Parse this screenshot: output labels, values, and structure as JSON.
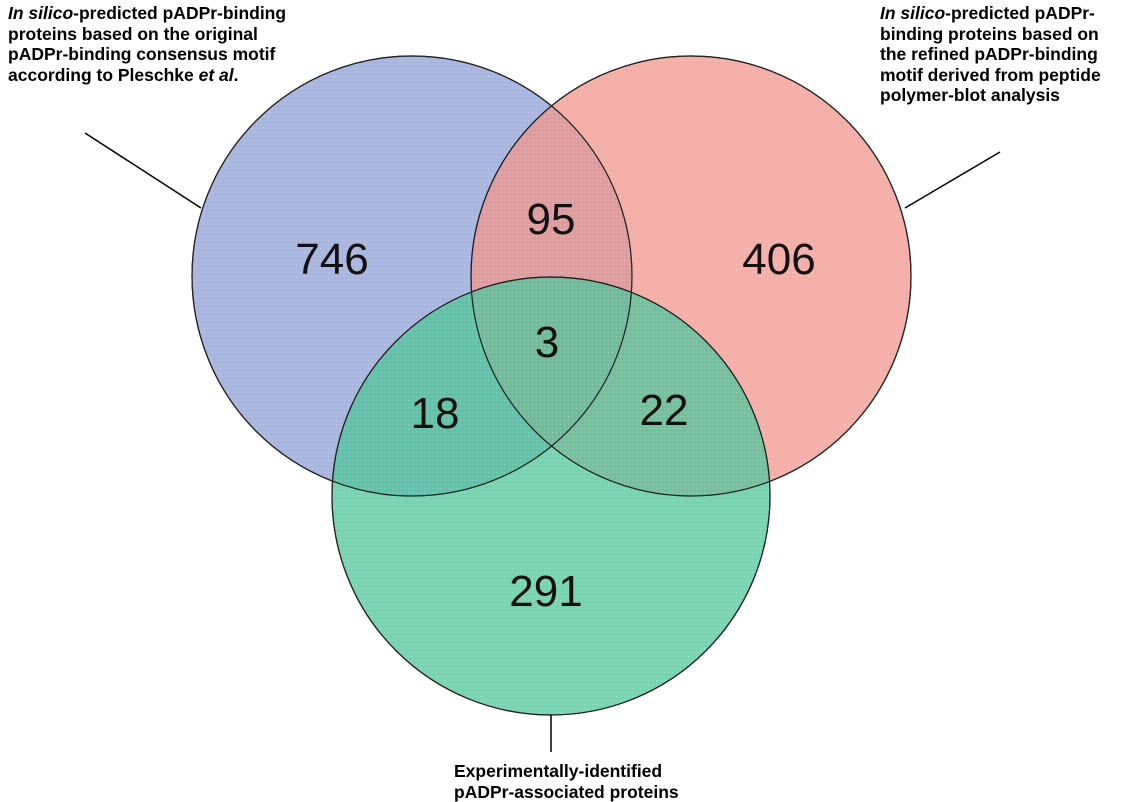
{
  "sets": {
    "original_motif": {
      "label_em": "In silico",
      "label_rest": "-predicted pADPr-binding proteins based on the original pADPr-binding consensus motif according to Pleschke ",
      "label_em2": "et al",
      "label_tail": ".",
      "color": "#8e9fd6"
    },
    "refined_motif": {
      "label_em": "In silico",
      "label_rest": "-predicted pADPr-binding proteins based on the refined pADPr-binding motif derived from peptide polymer-blot analysis",
      "color": "#f3968c"
    },
    "experimental": {
      "label_line1": "Experimentally-identified",
      "label_line2": "pADPr-associated proteins",
      "color": "#4ec79b"
    }
  },
  "regions": {
    "only_original": "746",
    "only_refined": "406",
    "only_experimental": "291",
    "original_refined": "95",
    "original_experimental": "18",
    "refined_experimental": "22",
    "all_three": "3"
  }
}
